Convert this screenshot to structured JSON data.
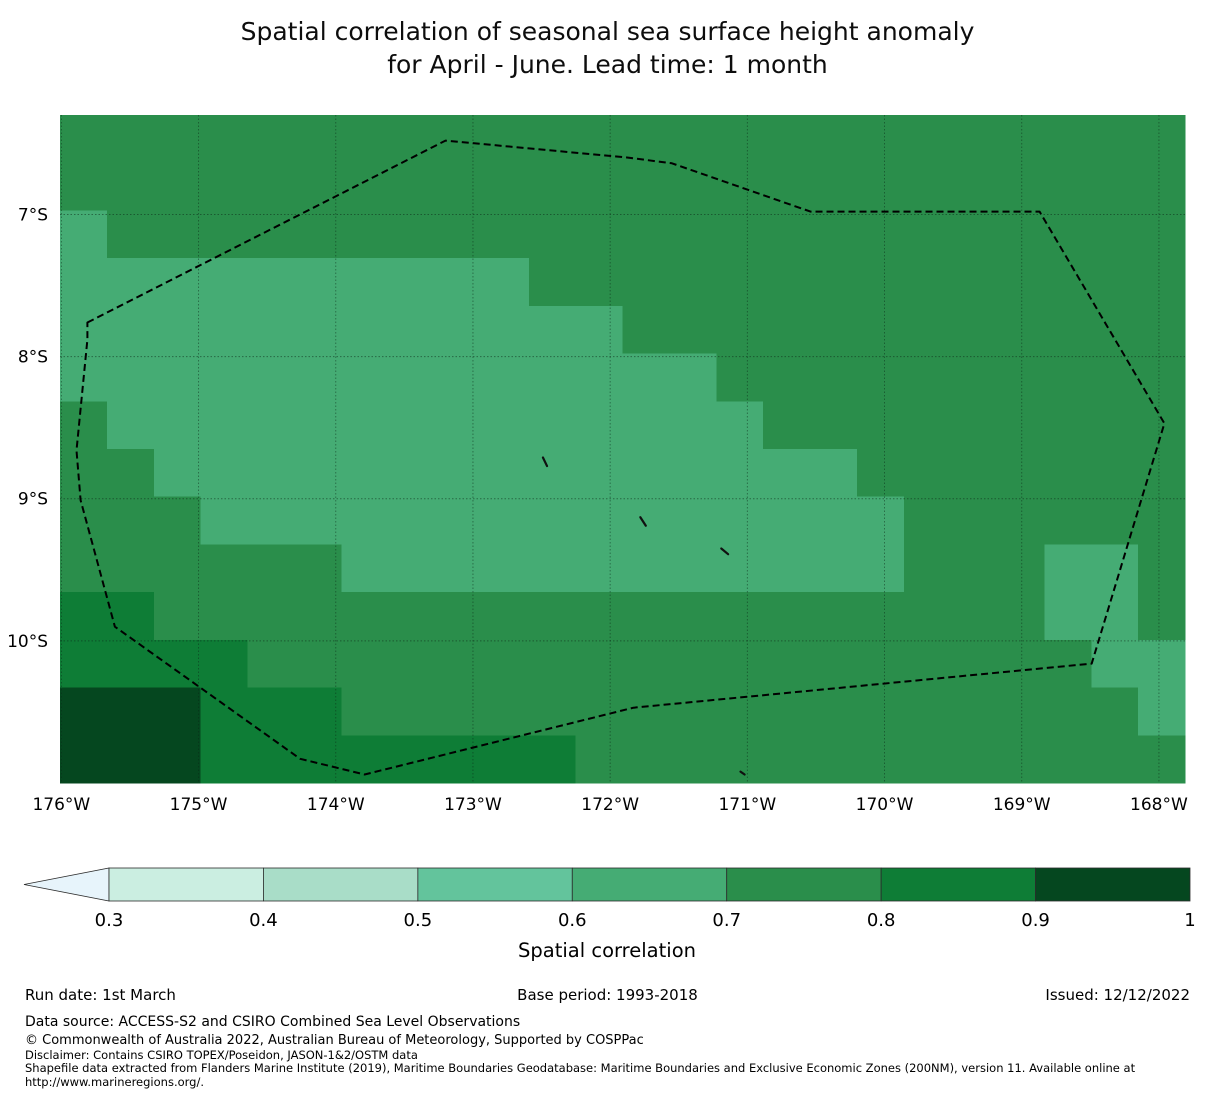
{
  "title": {
    "line1": "Spatial correlation of seasonal sea surface height anomaly",
    "line2": "for April - June. Lead time: 1 month"
  },
  "chart_data": {
    "type": "heatmap",
    "title": "Spatial correlation of seasonal sea surface height anomaly for April - June. Lead time: 1 month",
    "x_axis": {
      "label_unit": "degrees West",
      "tick_labels": [
        "176°W",
        "175°W",
        "174°W",
        "173°W",
        "172°W",
        "171°W",
        "170°W",
        "169°W",
        "168°W"
      ],
      "tick_values": [
        176,
        175,
        174,
        173,
        172,
        171,
        170,
        169,
        168
      ],
      "range_west": [
        176.01,
        167.81
      ]
    },
    "y_axis": {
      "label_unit": "degrees South",
      "tick_labels": [
        "7°S",
        "8°S",
        "9°S",
        "10°S"
      ],
      "tick_values": [
        7,
        8,
        9,
        10
      ],
      "range_south": [
        6.3,
        11.0
      ]
    },
    "grid_on": true,
    "value_name": "Spatial correlation",
    "bin_colors": {
      "6": "#45ac74",
      "7": "#2a8e4b",
      "8": "#0e7d36",
      "9": "#05471f"
    },
    "bin_meaning": {
      "6": "0.6-0.7",
      "7": "0.7-0.8",
      "8": "0.8-0.9",
      "9": "0.9-1.0"
    },
    "n_cols": 24,
    "n_rows": 14,
    "cells": [
      [
        7,
        7,
        7,
        7,
        7,
        7,
        7,
        7,
        7,
        7,
        7,
        7,
        7,
        7,
        7,
        7,
        7,
        7,
        7,
        7,
        7,
        7,
        7,
        7
      ],
      [
        7,
        7,
        7,
        7,
        7,
        7,
        7,
        7,
        7,
        7,
        7,
        7,
        7,
        7,
        7,
        7,
        7,
        7,
        7,
        7,
        7,
        7,
        7,
        7
      ],
      [
        6,
        7,
        7,
        7,
        7,
        7,
        7,
        7,
        7,
        7,
        7,
        7,
        7,
        7,
        7,
        7,
        7,
        7,
        7,
        7,
        7,
        7,
        7,
        7
      ],
      [
        6,
        6,
        6,
        6,
        6,
        6,
        6,
        6,
        6,
        6,
        7,
        7,
        7,
        7,
        7,
        7,
        7,
        7,
        7,
        7,
        7,
        7,
        7,
        7
      ],
      [
        6,
        6,
        6,
        6,
        6,
        6,
        6,
        6,
        6,
        6,
        6,
        6,
        7,
        7,
        7,
        7,
        7,
        7,
        7,
        7,
        7,
        7,
        7,
        7
      ],
      [
        6,
        6,
        6,
        6,
        6,
        6,
        6,
        6,
        6,
        6,
        6,
        6,
        6,
        6,
        7,
        7,
        7,
        7,
        7,
        7,
        7,
        7,
        7,
        7
      ],
      [
        7,
        6,
        6,
        6,
        6,
        6,
        6,
        6,
        6,
        6,
        6,
        6,
        6,
        6,
        6,
        7,
        7,
        7,
        7,
        7,
        7,
        7,
        7,
        7
      ],
      [
        7,
        7,
        6,
        6,
        6,
        6,
        6,
        6,
        6,
        6,
        6,
        6,
        6,
        6,
        6,
        6,
        6,
        7,
        7,
        7,
        7,
        7,
        7,
        7
      ],
      [
        7,
        7,
        7,
        6,
        6,
        6,
        6,
        6,
        6,
        6,
        6,
        6,
        6,
        6,
        6,
        6,
        6,
        6,
        7,
        7,
        7,
        7,
        7,
        7
      ],
      [
        7,
        7,
        7,
        7,
        7,
        7,
        6,
        6,
        6,
        6,
        6,
        6,
        6,
        6,
        6,
        6,
        6,
        6,
        7,
        7,
        7,
        6,
        6,
        7
      ],
      [
        8,
        8,
        7,
        7,
        7,
        7,
        7,
        7,
        7,
        7,
        7,
        7,
        7,
        7,
        7,
        7,
        7,
        7,
        7,
        7,
        7,
        6,
        6,
        7
      ],
      [
        8,
        8,
        8,
        8,
        7,
        7,
        7,
        7,
        7,
        7,
        7,
        7,
        7,
        7,
        7,
        7,
        7,
        7,
        7,
        7,
        7,
        7,
        6,
        6
      ],
      [
        9,
        9,
        9,
        8,
        8,
        8,
        7,
        7,
        7,
        7,
        7,
        7,
        7,
        7,
        7,
        7,
        7,
        7,
        7,
        7,
        7,
        7,
        7,
        6
      ],
      [
        9,
        9,
        9,
        8,
        8,
        8,
        8,
        8,
        8,
        8,
        8,
        7,
        7,
        7,
        7,
        7,
        7,
        7,
        7,
        7,
        7,
        7,
        7,
        7
      ]
    ],
    "eez_boundary_deg": [
      [
        175.81,
        7.76
      ],
      [
        173.2,
        6.48
      ],
      [
        171.87,
        6.6
      ],
      [
        171.55,
        6.64
      ],
      [
        170.54,
        6.98
      ],
      [
        168.87,
        6.98
      ],
      [
        167.96,
        8.47
      ],
      [
        168.49,
        10.16
      ],
      [
        171.83,
        10.47
      ],
      [
        173.79,
        10.94
      ],
      [
        174.26,
        10.83
      ],
      [
        175.61,
        9.9
      ],
      [
        175.86,
        9.01
      ],
      [
        175.89,
        8.66
      ],
      [
        175.81,
        7.88
      ]
    ],
    "islands_deg": [
      [
        172.49,
        8.71,
        172.46,
        8.77
      ],
      [
        171.78,
        9.13,
        171.74,
        9.19
      ],
      [
        171.19,
        9.35,
        171.14,
        9.39
      ],
      [
        171.05,
        10.92,
        171.02,
        10.94
      ]
    ],
    "colorbar": {
      "label": "Spatial correlation",
      "tick_labels": [
        "0.3",
        "0.4",
        "0.5",
        "0.6",
        "0.7",
        "0.8",
        "0.9",
        "1"
      ],
      "tick_values": [
        0.3,
        0.4,
        0.5,
        0.6,
        0.7,
        0.8,
        0.9,
        1.0
      ],
      "under_arrow_color": "#e7f4fb",
      "segments": [
        {
          "from": 0.3,
          "to": 0.4,
          "color": "#cbeee1"
        },
        {
          "from": 0.4,
          "to": 0.5,
          "color": "#a9ddc8"
        },
        {
          "from": 0.5,
          "to": 0.6,
          "color": "#63c49c"
        },
        {
          "from": 0.6,
          "to": 0.7,
          "color": "#45ac74"
        },
        {
          "from": 0.7,
          "to": 0.8,
          "color": "#2a8e4b"
        },
        {
          "from": 0.8,
          "to": 0.9,
          "color": "#0e7d36"
        },
        {
          "from": 0.9,
          "to": 1.0,
          "color": "#05471f"
        }
      ]
    },
    "boundary_style": {
      "color": "#000000",
      "dashed": true
    }
  },
  "footer": {
    "run_date": "Run date: 1st March",
    "base_period": "Base period: 1993-2018",
    "issued": "Issued: 12/12/2022",
    "data_source": "Data source: ACCESS-S2 and CSIRO Combined Sea Level Observations",
    "copyright": "© Commonwealth of Australia 2022, Australian Bureau of Meteorology, Supported by COSPPac",
    "disclaimer": "Disclaimer: Contains CSIRO TOPEX/Poseidon, JASON-1&2/OSTM data",
    "shapefile": "Shapefile data extracted from Flanders Marine Institute (2019), Maritime Boundaries Geodatabase: Maritime Boundaries and Exclusive Economic Zones (200NM), version 11. Available online at",
    "url": "http://www.marineregions.org/."
  }
}
